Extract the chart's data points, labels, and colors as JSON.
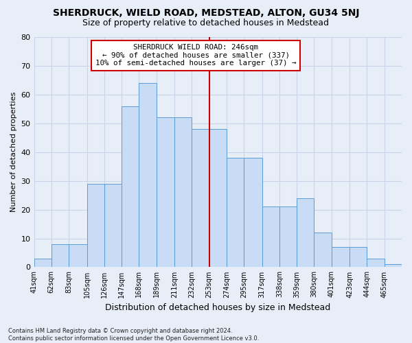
{
  "title": "SHERDRUCK, WIELD ROAD, MEDSTEAD, ALTON, GU34 5NJ",
  "subtitle": "Size of property relative to detached houses in Medstead",
  "xlabel": "Distribution of detached houses by size in Medstead",
  "ylabel": "Number of detached properties",
  "categories": [
    "41sqm",
    "62sqm",
    "83sqm",
    "105sqm",
    "126sqm",
    "147sqm",
    "168sqm",
    "189sqm",
    "211sqm",
    "232sqm",
    "253sqm",
    "274sqm",
    "295sqm",
    "317sqm",
    "338sqm",
    "359sqm",
    "380sqm",
    "401sqm",
    "423sqm",
    "444sqm",
    "465sqm"
  ],
  "bar_values": [
    3,
    8,
    8,
    29,
    29,
    56,
    64,
    52,
    52,
    48,
    48,
    38,
    38,
    21,
    21,
    24,
    12,
    7,
    7,
    3,
    1
  ],
  "bar_color": "#c9dcf5",
  "bar_edge_color": "#5b9bd5",
  "bin_edges": [
    41,
    62,
    83,
    105,
    126,
    147,
    168,
    189,
    211,
    232,
    253,
    274,
    295,
    317,
    338,
    359,
    380,
    401,
    423,
    444,
    465,
    486
  ],
  "vline_x": 253,
  "vline_color": "#cc0000",
  "annotation_title": "SHERDRUCK WIELD ROAD: 246sqm",
  "annotation_line1": "← 90% of detached houses are smaller (337)",
  "annotation_line2": "10% of semi-detached houses are larger (37) →",
  "annotation_box_color": "white",
  "annotation_box_edge_color": "#cc0000",
  "ylim": [
    0,
    80
  ],
  "yticks": [
    0,
    10,
    20,
    30,
    40,
    50,
    60,
    70,
    80
  ],
  "grid_color": "#c8d4e8",
  "background_color": "#e8eef8",
  "footer": "Contains HM Land Registry data © Crown copyright and database right 2024.\nContains public sector information licensed under the Open Government Licence v3.0.",
  "title_fontsize": 10,
  "subtitle_fontsize": 9
}
